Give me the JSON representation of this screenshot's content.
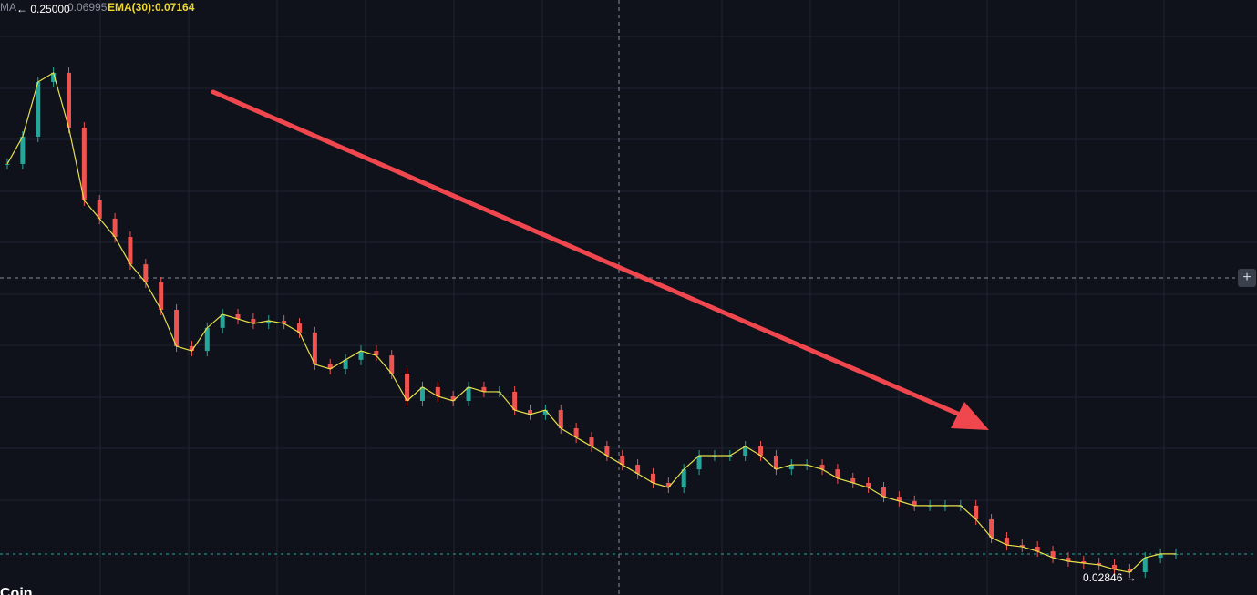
{
  "chart_data": {
    "type": "candles",
    "legend": {
      "ma_label": "MA",
      "ma_value": "0.06995",
      "ema": "EMA(30):0.07164"
    },
    "high_label": "← 0.25000",
    "low_label": "0.02846 →",
    "corner_text": "Coin",
    "ylim": [
      0.021,
      0.254
    ],
    "closes": [
      0.1898,
      0.2005,
      0.2219,
      0.2255,
      0.204,
      0.1755,
      0.1684,
      0.1612,
      0.1505,
      0.1434,
      0.1327,
      0.1184,
      0.1166,
      0.1256,
      0.1309,
      0.1291,
      0.1273,
      0.1284,
      0.1273,
      0.1238,
      0.1113,
      0.1095,
      0.1131,
      0.1166,
      0.1148,
      0.1077,
      0.097,
      0.1024,
      0.0988,
      0.097,
      0.1024,
      0.1006,
      0.1006,
      0.0934,
      0.0917,
      0.0934,
      0.0863,
      0.0827,
      0.0792,
      0.0756,
      0.072,
      0.0685,
      0.0649,
      0.0631,
      0.0702,
      0.0756,
      0.0756,
      0.0756,
      0.0792,
      0.0756,
      0.0702,
      0.072,
      0.072,
      0.0702,
      0.0667,
      0.0649,
      0.0631,
      0.0595,
      0.0578,
      0.056,
      0.056,
      0.056,
      0.056,
      0.0506,
      0.0435,
      0.0406,
      0.0399,
      0.0381,
      0.0356,
      0.0342,
      0.0335,
      0.0328,
      0.031,
      0.0299,
      0.0356,
      0.0371,
      0.0371
    ]
  }
}
